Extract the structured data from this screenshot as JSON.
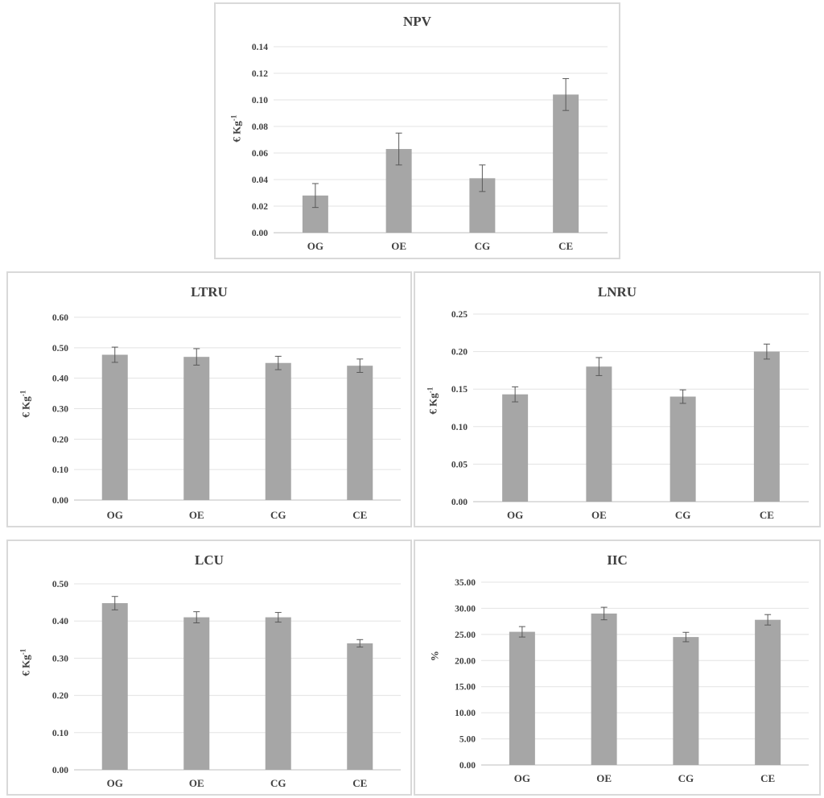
{
  "chart_data": [
    {
      "id": "npv",
      "type": "bar",
      "title": "NPV",
      "ylabel": "€ Kg",
      "ylabel_sup": "-1",
      "categories": [
        "OG",
        "OE",
        "CG",
        "CE"
      ],
      "values": [
        0.028,
        0.063,
        0.041,
        0.104
      ],
      "errors": [
        0.009,
        0.012,
        0.01,
        0.012
      ],
      "ylim": [
        0,
        0.14
      ],
      "ticks": [
        "0.00",
        "0.02",
        "0.04",
        "0.06",
        "0.08",
        "0.10",
        "0.12",
        "0.14"
      ],
      "grid": true,
      "bar_color": "#a6a6a6"
    },
    {
      "id": "ltru",
      "type": "bar",
      "title": "LTRU",
      "ylabel": "€ Kg",
      "ylabel_sup": "-1",
      "categories": [
        "OG",
        "OE",
        "CG",
        "CE"
      ],
      "values": [
        0.477,
        0.47,
        0.45,
        0.441
      ],
      "errors": [
        0.025,
        0.027,
        0.022,
        0.022
      ],
      "ylim": [
        0,
        0.6
      ],
      "ticks": [
        "0.00",
        "0.10",
        "0.20",
        "0.30",
        "0.40",
        "0.50",
        "0.60"
      ],
      "grid": true,
      "bar_color": "#a6a6a6"
    },
    {
      "id": "lnru",
      "type": "bar",
      "title": "LNRU",
      "ylabel": "€ Kg",
      "ylabel_sup": "-1",
      "categories": [
        "OG",
        "OE",
        "CG",
        "CE"
      ],
      "values": [
        0.143,
        0.18,
        0.14,
        0.2
      ],
      "errors": [
        0.01,
        0.012,
        0.009,
        0.01
      ],
      "ylim": [
        0,
        0.25
      ],
      "ticks": [
        "0.00",
        "0.05",
        "0.10",
        "0.15",
        "0.20",
        "0.25"
      ],
      "grid": true,
      "bar_color": "#a6a6a6"
    },
    {
      "id": "lcu",
      "type": "bar",
      "title": "LCU",
      "ylabel": "€ Kg",
      "ylabel_sup": "-1",
      "categories": [
        "OG",
        "OE",
        "CG",
        "CE"
      ],
      "values": [
        0.448,
        0.41,
        0.41,
        0.34
      ],
      "errors": [
        0.018,
        0.015,
        0.013,
        0.01
      ],
      "ylim": [
        0,
        0.5
      ],
      "ticks": [
        "0.00",
        "0.10",
        "0.20",
        "0.30",
        "0.40",
        "0.50"
      ],
      "grid": true,
      "bar_color": "#a6a6a6"
    },
    {
      "id": "iic",
      "type": "bar",
      "title": "IIC",
      "ylabel": "%",
      "ylabel_sup": "",
      "categories": [
        "OG",
        "OE",
        "CG",
        "CE"
      ],
      "values": [
        25.5,
        29.0,
        24.5,
        27.8
      ],
      "errors": [
        1.0,
        1.2,
        0.9,
        1.0
      ],
      "ylim": [
        0,
        35
      ],
      "ticks": [
        "0.00",
        "5.00",
        "10.00",
        "15.00",
        "20.00",
        "25.00",
        "30.00",
        "35.00"
      ],
      "grid": true,
      "bar_color": "#a6a6a6"
    }
  ]
}
